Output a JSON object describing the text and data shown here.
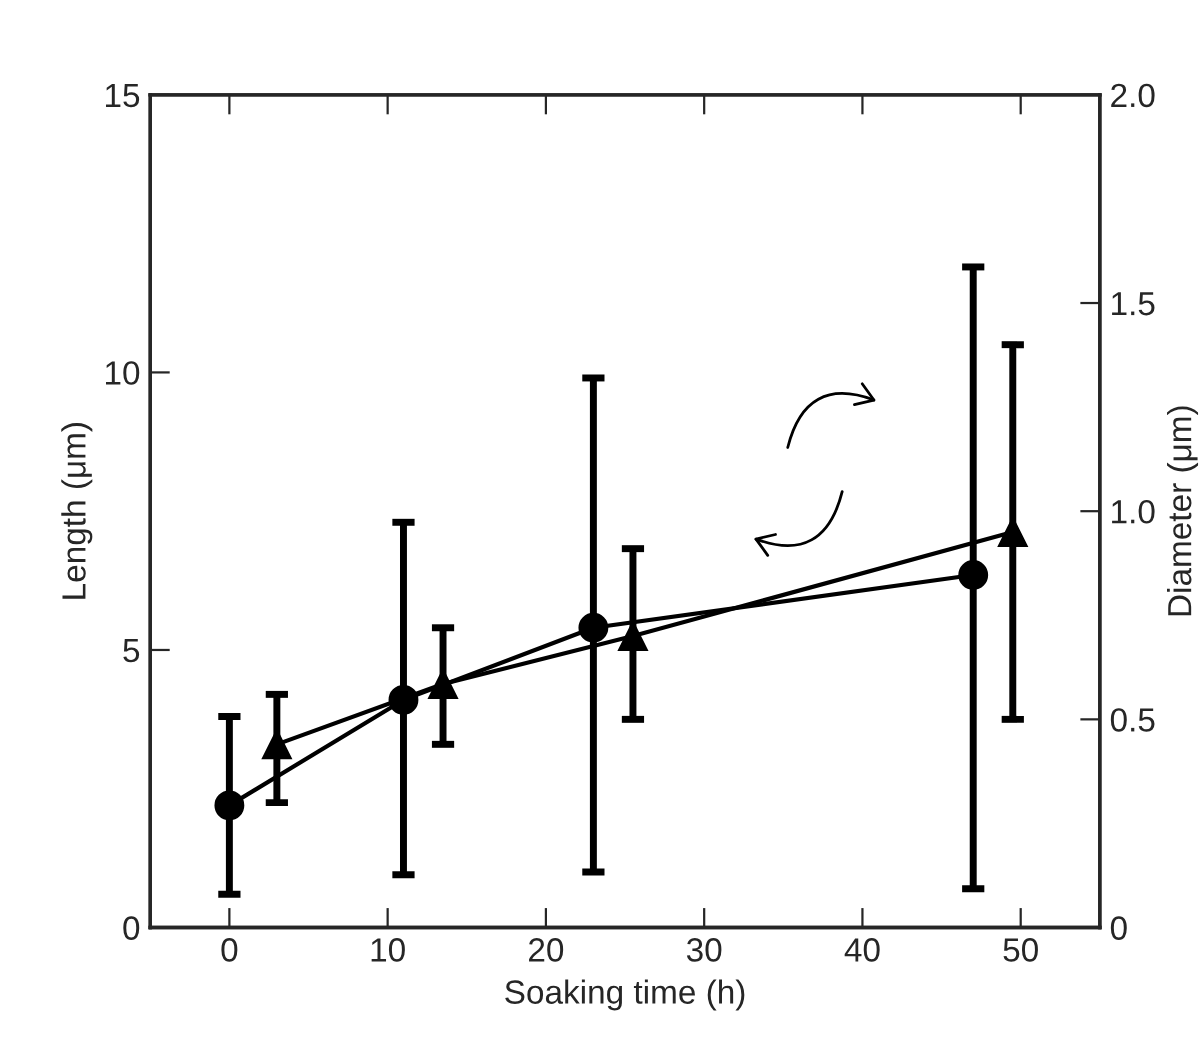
{
  "chart_data": {
    "type": "line",
    "xlabel": "Soaking time (h)",
    "ylabel": "Length (μm)",
    "y2label": "Diameter (μm)",
    "xlim": [
      -5,
      55
    ],
    "xticks": [
      0,
      10,
      20,
      30,
      40,
      50
    ],
    "ylim": [
      0,
      15
    ],
    "yticks": [
      0,
      5,
      10,
      15
    ],
    "y2lim": [
      0,
      2.0
    ],
    "y2ticks": [
      0,
      0.5,
      {
        "value": 1.0,
        "label": "1.0"
      },
      1.5,
      {
        "value": 2.0,
        "label": "2.0"
      }
    ],
    "grid": false,
    "series": [
      {
        "color": "#000000",
        "marker": "circle",
        "line_style": "solid",
        "x": [
          0,
          11,
          23,
          47
        ],
        "values": [
          2.2,
          4.1,
          5.4,
          6.35
        ],
        "errors": [
          [
            0.6,
            3.8
          ],
          [
            0.95,
            7.3
          ],
          [
            1.0,
            9.9
          ],
          [
            0.7,
            11.9
          ]
        ]
      },
      {
        "color": "#000000",
        "marker": "triangle",
        "line_style": "solid",
        "axis": "y2",
        "x": [
          3,
          13.5,
          25.5,
          49.5
        ],
        "values": [
          0.44,
          0.585,
          0.7,
          0.95
        ],
        "errors": [
          [
            0.3,
            0.56
          ],
          [
            0.44,
            0.72
          ],
          [
            0.5,
            0.91
          ],
          [
            0.5,
            1.4
          ]
        ]
      }
    ]
  }
}
